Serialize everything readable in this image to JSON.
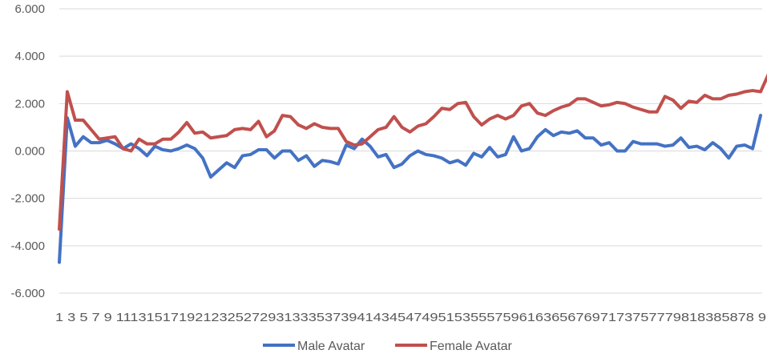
{
  "chart_data": {
    "type": "line",
    "title": "",
    "xlabel": "",
    "ylabel": "",
    "ylim": [
      -6,
      6
    ],
    "yticks": [
      6,
      4,
      2,
      0,
      -2,
      -4,
      -6
    ],
    "ytick_labels": [
      "6.000",
      "4.000",
      "2.000",
      "0.000",
      "-2.000",
      "-4.000",
      "-6.000"
    ],
    "x_tick_text": "1 3 5 7 9 1113151719212325272931333537394143454749515355575961636567697173757779818385878 9",
    "grid": true,
    "legend_position": "bottom",
    "series": [
      {
        "name": "Male Avatar",
        "color": "#4472C4",
        "values": [
          -4.7,
          1.4,
          0.2,
          0.6,
          0.35,
          0.35,
          0.45,
          0.3,
          0.1,
          0.3,
          0.1,
          -0.2,
          0.2,
          0.05,
          0.0,
          0.1,
          0.25,
          0.1,
          -0.3,
          -1.1,
          -0.8,
          -0.5,
          -0.7,
          -0.2,
          -0.15,
          0.05,
          0.05,
          -0.3,
          0.0,
          0.0,
          -0.4,
          -0.2,
          -0.65,
          -0.4,
          -0.45,
          -0.55,
          0.25,
          0.1,
          0.5,
          0.2,
          -0.25,
          -0.15,
          -0.7,
          -0.55,
          -0.2,
          0.0,
          -0.15,
          -0.2,
          -0.3,
          -0.5,
          -0.4,
          -0.6,
          -0.1,
          -0.25,
          0.15,
          -0.25,
          -0.15,
          0.6,
          0.0,
          0.1,
          0.6,
          0.9,
          0.65,
          0.8,
          0.75,
          0.85,
          0.55,
          0.55,
          0.25,
          0.35,
          0.0,
          0.0,
          0.4,
          0.3,
          0.3,
          0.3,
          0.2,
          0.25,
          0.55,
          0.15,
          0.2,
          0.05,
          0.35,
          0.1,
          -0.3,
          0.2,
          0.25,
          0.1,
          1.5
        ]
      },
      {
        "name": "Female Avatar",
        "color": "#C0504D",
        "values": [
          -3.3,
          2.5,
          1.3,
          1.3,
          0.9,
          0.5,
          0.55,
          0.6,
          0.1,
          0.0,
          0.5,
          0.3,
          0.3,
          0.5,
          0.5,
          0.8,
          1.2,
          0.75,
          0.8,
          0.55,
          0.6,
          0.65,
          0.9,
          0.95,
          0.9,
          1.25,
          0.6,
          0.85,
          1.5,
          1.45,
          1.1,
          0.95,
          1.15,
          1.0,
          0.95,
          0.95,
          0.4,
          0.25,
          0.3,
          0.6,
          0.9,
          1.0,
          1.45,
          1.0,
          0.8,
          1.05,
          1.15,
          1.45,
          1.8,
          1.75,
          2.0,
          2.05,
          1.45,
          1.1,
          1.35,
          1.5,
          1.35,
          1.5,
          1.9,
          2.0,
          1.6,
          1.5,
          1.7,
          1.85,
          1.95,
          2.2,
          2.2,
          2.05,
          1.9,
          1.95,
          2.05,
          2.0,
          1.85,
          1.75,
          1.65,
          1.65,
          2.3,
          2.15,
          1.8,
          2.1,
          2.05,
          2.35,
          2.2,
          2.2,
          2.35,
          2.4,
          2.5,
          2.55,
          2.5,
          3.25
        ]
      }
    ]
  }
}
